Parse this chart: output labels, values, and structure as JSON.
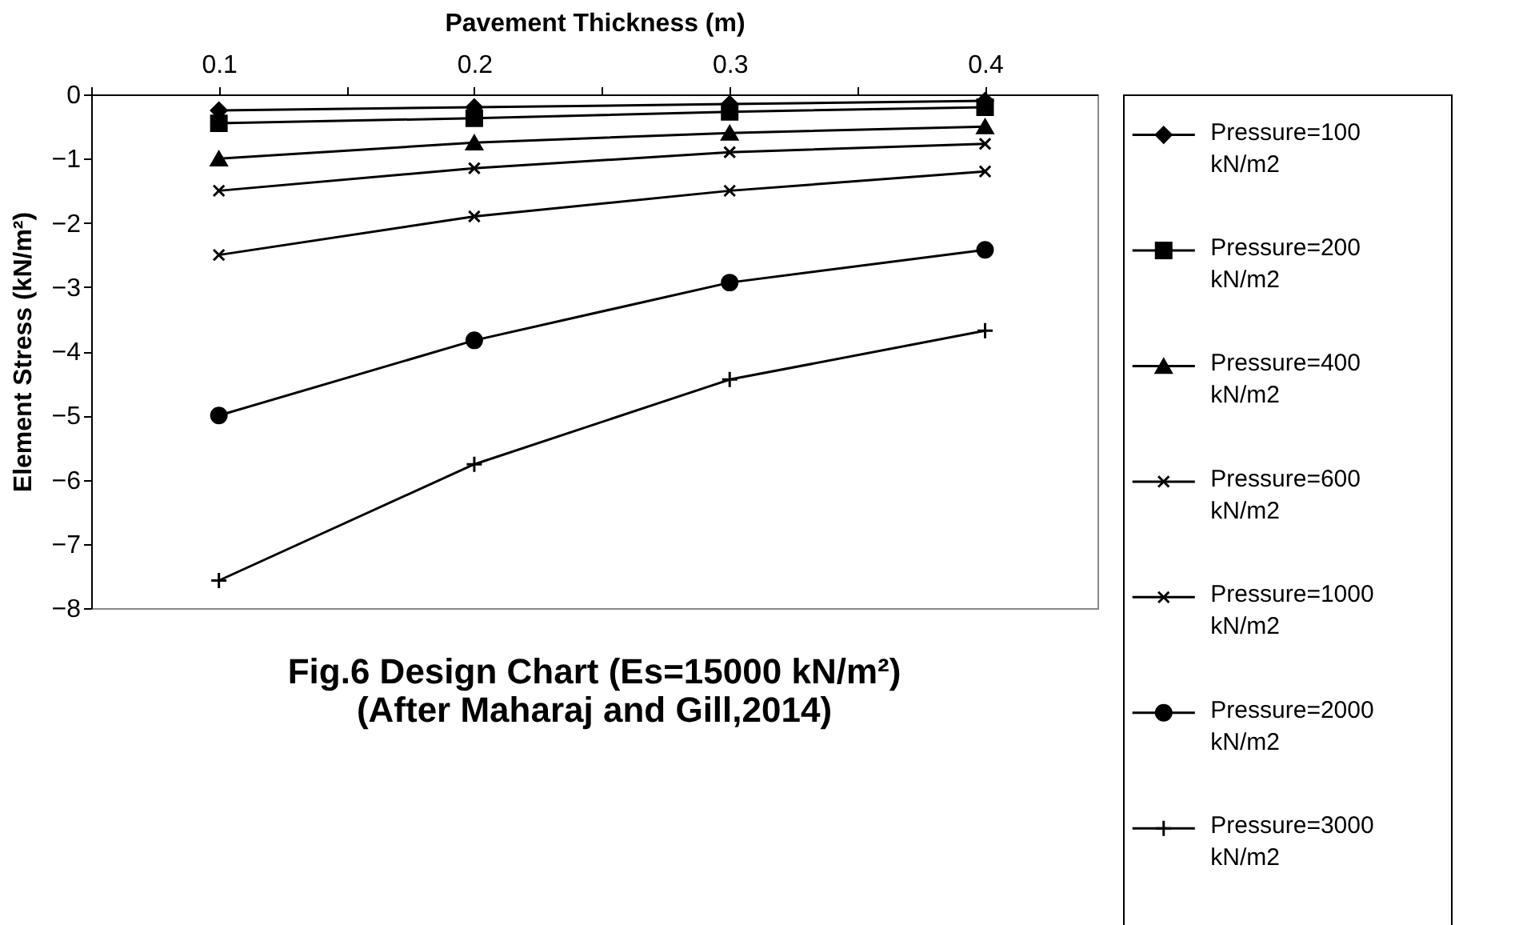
{
  "chart_data": {
    "type": "line",
    "title": [
      "Fig.6 Design Chart (Es=15000 kN/m²)",
      "(After Maharaj and Gill,2014)"
    ],
    "xlabel": "Pavement Thickness (m)",
    "ylabel": "Element Stress (kN/m²)",
    "x": [
      0.1,
      0.2,
      0.3,
      0.4
    ],
    "xlim": [
      0.05,
      0.444
    ],
    "xticks": [
      {
        "value": 0.05,
        "label": null
      },
      {
        "value": 0.1,
        "label": "0.1"
      },
      {
        "value": 0.15,
        "label": null
      },
      {
        "value": 0.2,
        "label": "0.2"
      },
      {
        "value": 0.25,
        "label": null
      },
      {
        "value": 0.3,
        "label": "0.3"
      },
      {
        "value": 0.35,
        "label": null
      },
      {
        "value": 0.4,
        "label": "0.4"
      }
    ],
    "ylim": [
      -8,
      0
    ],
    "yticks": [
      -8,
      -7,
      -6,
      -5,
      -4,
      -3,
      -2,
      -1,
      0
    ],
    "grid": false,
    "legend": "right",
    "line_style": "solid",
    "series": [
      {
        "name": "Pressure=100 kN/m2",
        "color": "#000000",
        "marker": "diamond",
        "values": [
          -0.25,
          -0.2,
          -0.15,
          -0.1
        ]
      },
      {
        "name": "Pressure=200 kN/m2",
        "color": "#000000",
        "marker": "square",
        "values": [
          -0.45,
          -0.37,
          -0.27,
          -0.2
        ]
      },
      {
        "name": "Pressure=400 kN/m2",
        "color": "#000000",
        "marker": "triangle",
        "values": [
          -1.0,
          -0.75,
          -0.6,
          -0.5
        ]
      },
      {
        "name": "Pressure=600 kN/m2",
        "color": "#000000",
        "marker": "cross",
        "values": [
          -1.5,
          -1.15,
          -0.9,
          -0.77
        ]
      },
      {
        "name": "Pressure=1000 kN/m2",
        "color": "#000000",
        "marker": "cross",
        "values": [
          -2.5,
          -1.9,
          -1.5,
          -1.2
        ]
      },
      {
        "name": "Pressure=2000 kN/m2",
        "color": "#000000",
        "marker": "circle",
        "values": [
          -5.0,
          -3.83,
          -2.93,
          -2.42
        ]
      },
      {
        "name": "Pressure=3000 kN/m2",
        "color": "#000000",
        "marker": "plus",
        "values": [
          -7.57,
          -5.76,
          -4.44,
          -3.68
        ]
      }
    ]
  }
}
